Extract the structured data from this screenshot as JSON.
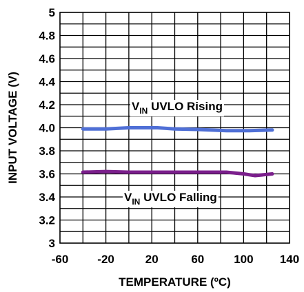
{
  "chart_data": {
    "type": "line",
    "xlabel": "TEMPERATURE (ºC)",
    "ylabel": "INPUT VOLTAGE (V)",
    "xlim": [
      -60,
      140
    ],
    "ylim": [
      3,
      5
    ],
    "x_ticks": [
      "-60",
      "-20",
      "20",
      "60",
      "100",
      "140"
    ],
    "y_ticks": [
      "3",
      "3.2",
      "3.4",
      "3.6",
      "3.8",
      "4.0",
      "4.2",
      "4.4",
      "4.6",
      "4.8",
      "5"
    ],
    "grid": true,
    "series": [
      {
        "color": "#4F6FD6",
        "x": [
          -40,
          -20,
          0,
          25,
          40,
          60,
          85,
          105,
          125
        ],
        "y": [
          3.99,
          3.99,
          4.0,
          4.0,
          3.99,
          3.985,
          3.975,
          3.975,
          3.98
        ]
      },
      {
        "color": "#7B1F8C",
        "x": [
          -40,
          -20,
          0,
          25,
          50,
          85,
          100,
          110,
          125
        ],
        "y": [
          3.615,
          3.62,
          3.615,
          3.615,
          3.615,
          3.615,
          3.6,
          3.585,
          3.6
        ]
      }
    ],
    "annotations": [
      {
        "main": "V",
        "sub": "IN",
        "rest": " UVLO Rising"
      },
      {
        "main": "V",
        "sub": "IN",
        "rest": " UVLO Falling"
      }
    ]
  }
}
